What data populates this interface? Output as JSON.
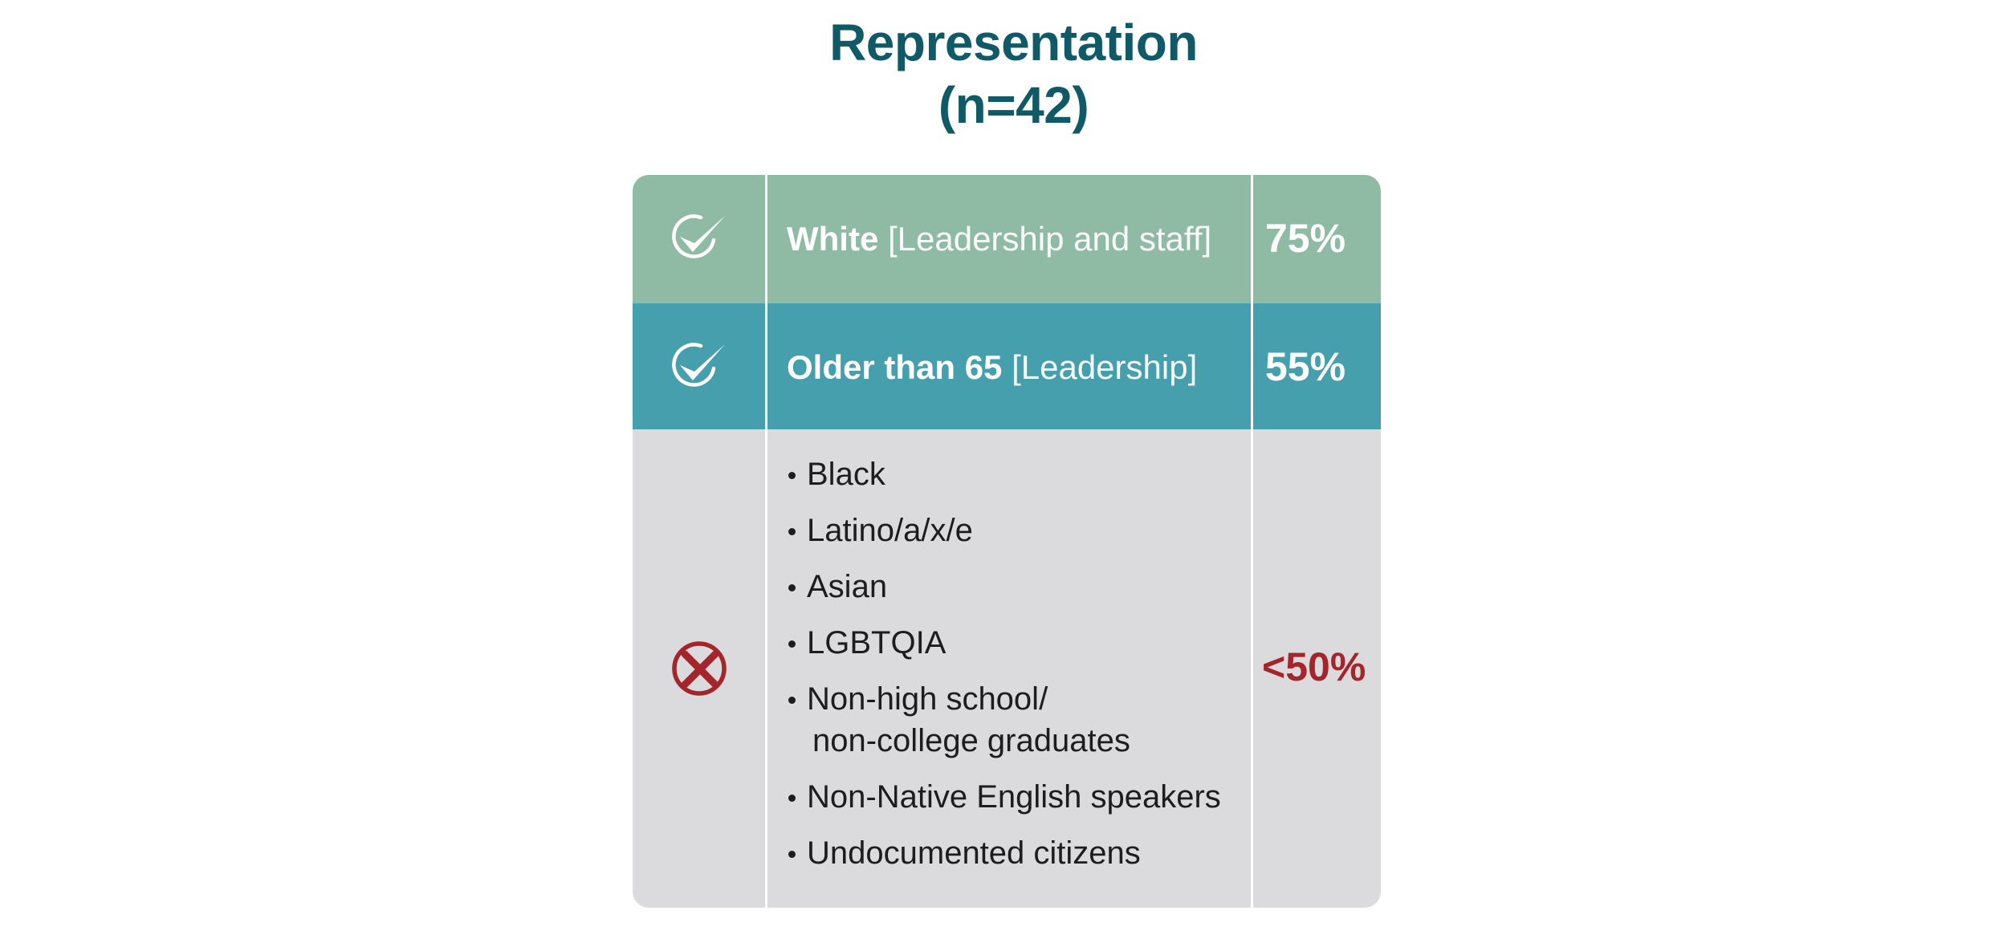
{
  "title": {
    "line1": "Representation",
    "line2": "(n=42)"
  },
  "rows": [
    {
      "status_icon": "check-circle-icon",
      "label_strong": "White",
      "label_light": "[Leadership and staff]",
      "percent": "75%",
      "color": "#8fbba5"
    },
    {
      "status_icon": "check-circle-icon",
      "label_strong": "Older than 65",
      "label_light": "[Leadership]",
      "percent": "55%",
      "color": "#459fad"
    },
    {
      "status_icon": "x-circle-icon",
      "items": [
        {
          "line1": "Black"
        },
        {
          "line1": "Latino/a/x/e"
        },
        {
          "line1": "Asian"
        },
        {
          "line1": "LGBTQIA"
        },
        {
          "line1": "Non-high school/",
          "line2": "non-college graduates"
        },
        {
          "line1": "Non-Native English speakers"
        },
        {
          "line1": "Undocumented citizens"
        }
      ],
      "percent": "<50%",
      "color": "#dbdbdd",
      "accent": "#a4262c"
    }
  ],
  "colors": {
    "title": "#0f5a66",
    "text_dark": "#1d1d1f",
    "white": "#ffffff"
  }
}
